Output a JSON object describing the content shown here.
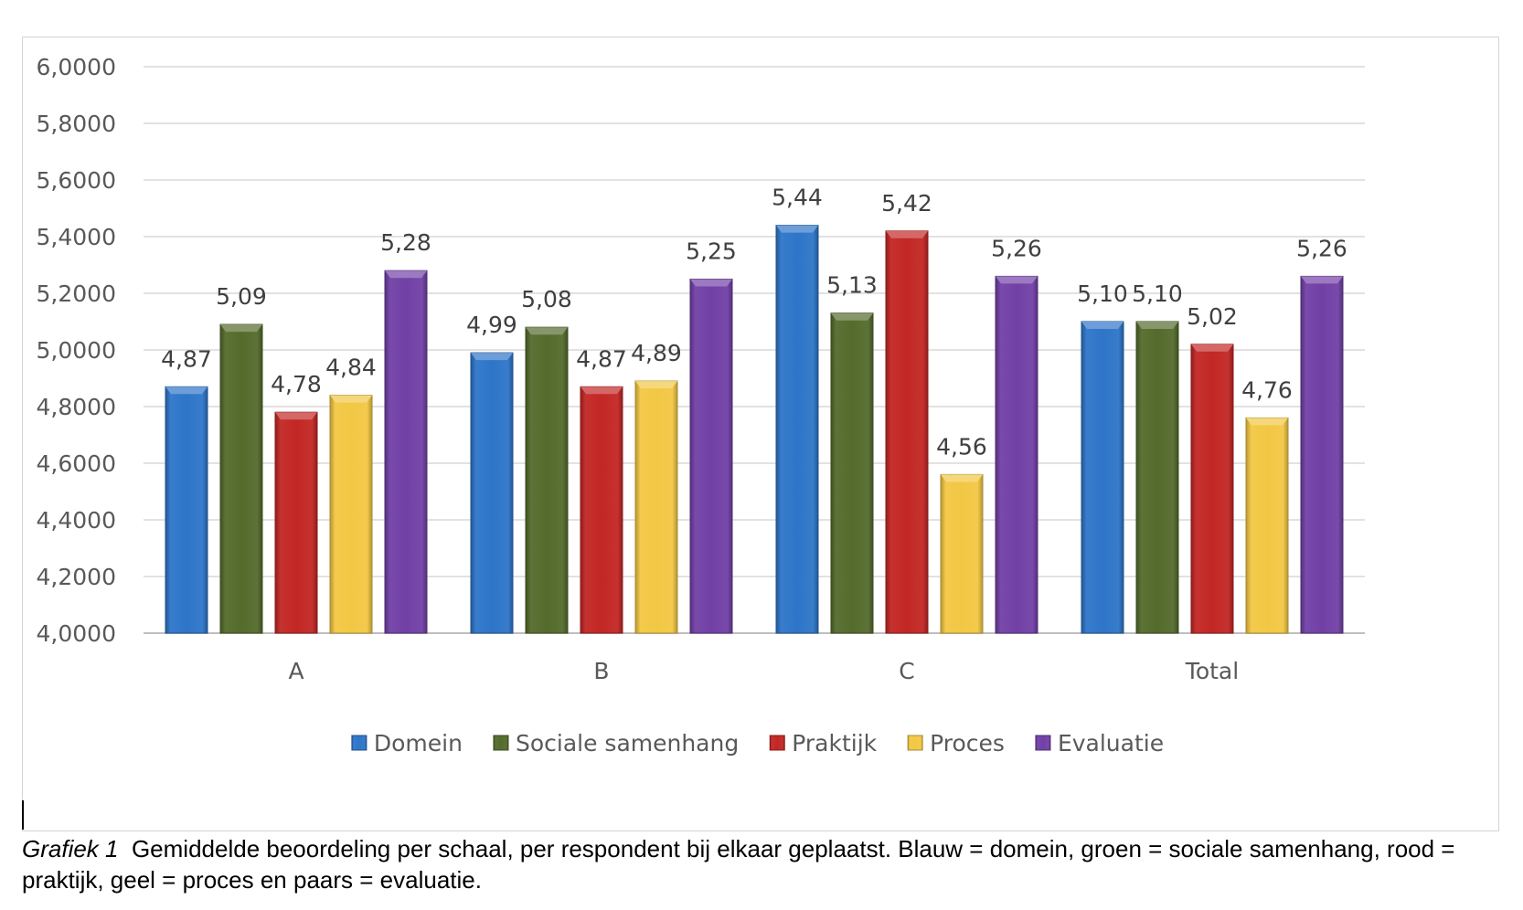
{
  "chart_data": {
    "type": "bar",
    "categories": [
      "A",
      "B",
      "C",
      "Total"
    ],
    "series": [
      {
        "name": "Domein",
        "values": [
          4.87,
          4.99,
          5.44,
          5.1
        ],
        "labels": [
          "4,87",
          "4,99",
          "5,44",
          "5,10"
        ],
        "color": "#2E75C8"
      },
      {
        "name": "Sociale samenhang",
        "values": [
          5.09,
          5.08,
          5.13,
          5.1
        ],
        "labels": [
          "5,09",
          "5,08",
          "5,13",
          "5,10"
        ],
        "color": "#546B2C"
      },
      {
        "name": "Praktijk",
        "values": [
          4.78,
          4.87,
          5.42,
          5.02
        ],
        "labels": [
          "4,78",
          "4,87",
          "5,42",
          "5,02"
        ],
        "color": "#C22724"
      },
      {
        "name": "Proces",
        "values": [
          4.84,
          4.89,
          4.56,
          4.76
        ],
        "labels": [
          "4,84",
          "4,89",
          "4,56",
          "4,76"
        ],
        "color": "#F2C744"
      },
      {
        "name": "Evaluatie",
        "values": [
          5.28,
          5.25,
          5.26,
          5.26
        ],
        "labels": [
          "5,28",
          "5,25",
          "5,26",
          "5,26"
        ],
        "color": "#7140A6"
      }
    ],
    "ylim": [
      4.0,
      6.0
    ],
    "yticks": [
      {
        "value": 4.0,
        "label": "4,0000"
      },
      {
        "value": 4.2,
        "label": "4,2000"
      },
      {
        "value": 4.4,
        "label": "4,4000"
      },
      {
        "value": 4.6,
        "label": "4,6000"
      },
      {
        "value": 4.8,
        "label": "4,8000"
      },
      {
        "value": 5.0,
        "label": "5,0000"
      },
      {
        "value": 5.2,
        "label": "5,2000"
      },
      {
        "value": 5.4,
        "label": "5,4000"
      },
      {
        "value": 5.6,
        "label": "5,6000"
      },
      {
        "value": 5.8,
        "label": "5,8000"
      },
      {
        "value": 6.0,
        "label": "6,0000"
      }
    ],
    "grid": true,
    "legend": "bottom",
    "title": "",
    "xlabel": "",
    "ylabel": ""
  },
  "caption": {
    "label": "Grafiek 1",
    "text": "Gemiddelde beoordeling per schaal, per respondent bij elkaar geplaatst. Blauw = domein, groen = sociale samenhang, rood = praktijk, geel = proces en paars = evaluatie."
  }
}
